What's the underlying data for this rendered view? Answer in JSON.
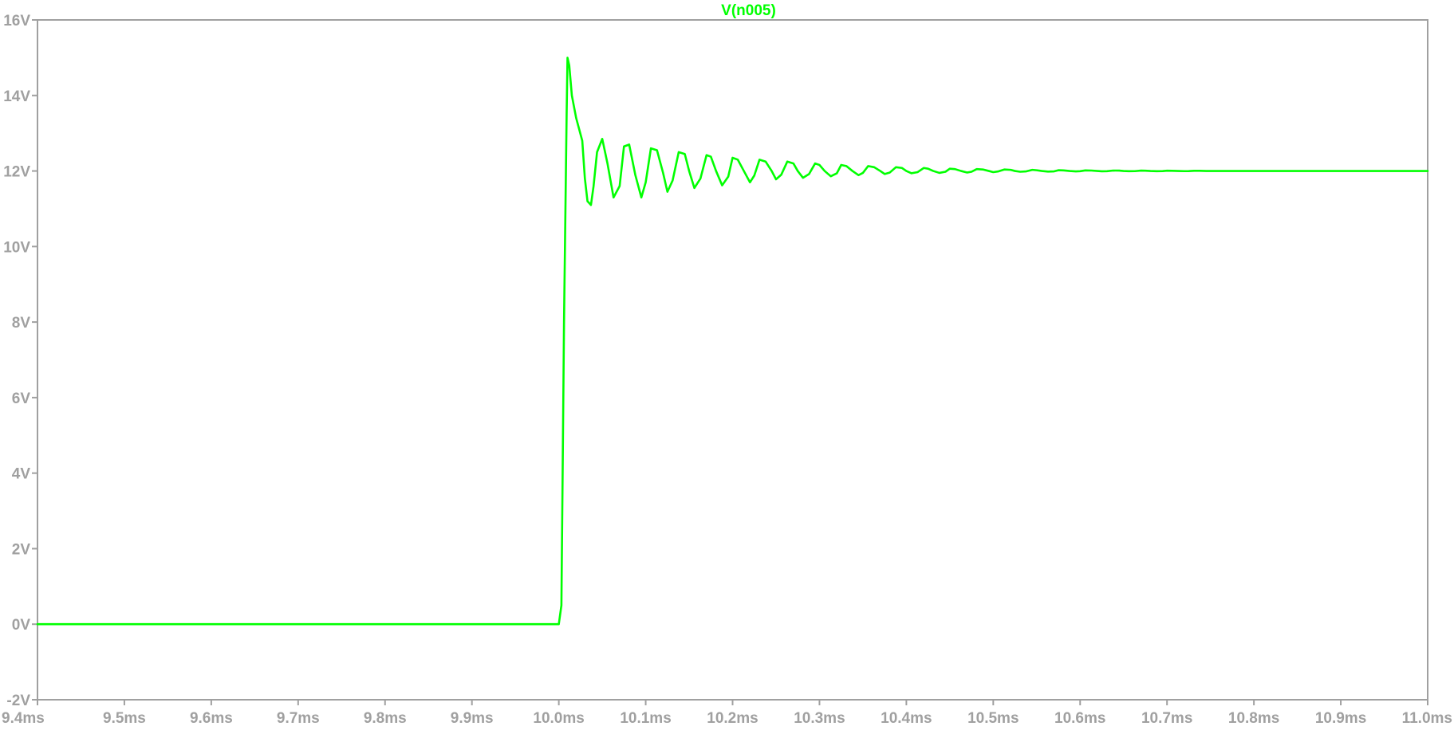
{
  "chart_data": {
    "type": "line",
    "title": "",
    "xlabel": "",
    "ylabel": "",
    "xlim": [
      9.4,
      11.0
    ],
    "ylim": [
      -2,
      16
    ],
    "grid": false,
    "legend": "top-center",
    "x_unit": "ms",
    "y_unit": "V",
    "x_ticks": [
      9.4,
      9.5,
      9.6,
      9.7,
      9.8,
      9.9,
      10.0,
      10.1,
      10.2,
      10.3,
      10.4,
      10.5,
      10.6,
      10.7,
      10.8,
      10.9,
      11.0
    ],
    "x_tick_labels": [
      "9.4ms",
      "9.5ms",
      "9.6ms",
      "9.7ms",
      "9.8ms",
      "9.9ms",
      "10.0ms",
      "10.1ms",
      "10.2ms",
      "10.3ms",
      "10.4ms",
      "10.5ms",
      "10.6ms",
      "10.7ms",
      "10.8ms",
      "10.9ms",
      "11.0ms"
    ],
    "y_ticks": [
      16,
      14,
      12,
      10,
      8,
      6,
      4,
      2,
      0,
      -2
    ],
    "y_tick_labels": [
      "16V",
      "14V",
      "12V",
      "10V",
      "8V",
      "6V",
      "4V",
      "2V",
      "0V",
      "-2V"
    ],
    "series": [
      {
        "name": "V(n005)",
        "color": "#00ff00",
        "x": [
          9.4,
          10.0,
          10.003,
          10.006,
          10.009,
          10.01,
          10.012,
          10.015,
          10.02,
          10.027,
          10.03,
          10.033,
          10.037,
          10.04,
          10.044,
          10.05,
          10.056,
          10.063,
          10.07,
          10.075,
          10.081,
          10.088,
          10.095,
          10.1,
          10.106,
          10.113,
          10.12,
          10.125,
          10.131,
          10.138,
          10.145,
          10.15,
          10.156,
          10.163,
          10.17,
          10.175,
          10.181,
          10.188,
          10.195,
          10.2,
          10.206,
          10.213,
          10.22,
          10.225,
          10.231,
          10.238,
          10.245,
          10.25,
          10.256,
          10.263,
          10.27,
          10.275,
          10.281,
          10.288,
          10.295,
          10.3,
          10.306,
          10.313,
          10.32,
          10.325,
          10.331,
          10.338,
          10.345,
          10.35,
          10.356,
          10.363,
          10.37,
          10.375,
          10.381,
          10.388,
          10.395,
          10.4,
          10.406,
          10.413,
          10.42,
          10.425,
          10.431,
          10.438,
          10.445,
          10.45,
          10.456,
          10.463,
          10.47,
          10.475,
          10.481,
          10.488,
          10.495,
          10.5,
          10.506,
          10.513,
          10.52,
          10.525,
          10.531,
          10.538,
          10.545,
          10.55,
          10.556,
          10.563,
          10.57,
          10.575,
          10.581,
          10.588,
          10.595,
          10.6,
          10.606,
          10.613,
          10.62,
          10.625,
          10.631,
          10.638,
          10.645,
          10.65,
          10.656,
          10.663,
          10.67,
          10.675,
          10.681,
          10.688,
          10.695,
          10.7,
          10.706,
          10.713,
          10.72,
          10.725,
          10.731,
          10.738,
          10.745,
          10.75,
          10.8,
          10.9,
          11.0
        ],
        "y": [
          0,
          0,
          0.5,
          8.0,
          13.5,
          15.0,
          14.8,
          14.0,
          13.4,
          12.8,
          11.8,
          11.2,
          11.1,
          11.6,
          12.5,
          12.85,
          12.2,
          11.3,
          11.6,
          12.65,
          12.7,
          11.9,
          11.3,
          11.7,
          12.6,
          12.55,
          11.95,
          11.45,
          11.75,
          12.5,
          12.45,
          12.0,
          11.55,
          11.8,
          12.42,
          12.38,
          12.0,
          11.62,
          11.85,
          12.35,
          12.3,
          12.0,
          11.7,
          11.88,
          12.3,
          12.25,
          12.0,
          11.78,
          11.9,
          12.25,
          12.2,
          12.0,
          11.82,
          11.92,
          12.2,
          12.16,
          12.0,
          11.86,
          11.94,
          12.16,
          12.13,
          12.0,
          11.89,
          11.95,
          12.13,
          12.1,
          12.0,
          11.92,
          11.96,
          12.1,
          12.08,
          12.0,
          11.94,
          11.97,
          12.08,
          12.06,
          12.0,
          11.95,
          11.98,
          12.06,
          12.05,
          12.0,
          11.96,
          11.98,
          12.05,
          12.04,
          12.0,
          11.97,
          11.99,
          12.04,
          12.03,
          12.0,
          11.98,
          11.99,
          12.03,
          12.02,
          12.0,
          11.985,
          11.99,
          12.02,
          12.015,
          12.0,
          11.99,
          11.995,
          12.015,
          12.012,
          12.0,
          11.992,
          11.995,
          12.012,
          12.01,
          12.0,
          11.994,
          11.996,
          12.01,
          12.008,
          12.0,
          11.995,
          11.997,
          12.008,
          12.006,
          12.0,
          11.996,
          11.998,
          12.006,
          12.005,
          12.0,
          12.0,
          12.0,
          12.0,
          12.0
        ]
      }
    ]
  }
}
